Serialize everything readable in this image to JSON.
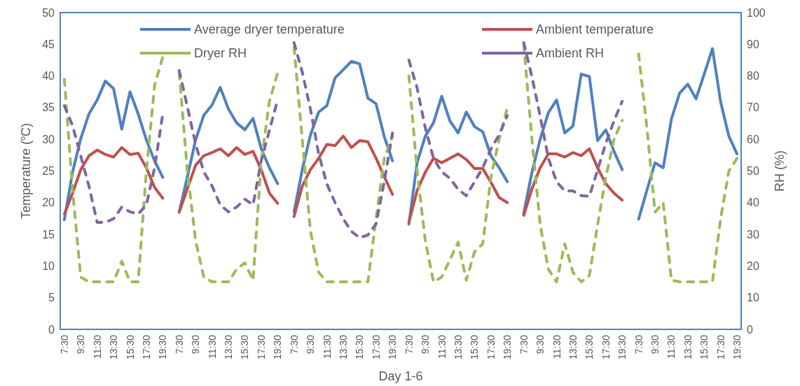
{
  "chart_data": {
    "type": "line",
    "xlabel": "Day 1-6",
    "ylabel": "Temperature ($^{o}$C)",
    "y2label": "RH (%)",
    "categories": [
      "7:30",
      null,
      "9:30",
      null,
      "11:30",
      null,
      "13:30",
      null,
      "15:30",
      null,
      "17:30",
      null,
      "19:30",
      null,
      "7:30",
      null,
      "9:30",
      null,
      "11:30",
      null,
      "13:30",
      null,
      "15:30",
      null,
      "17:30",
      null,
      "19:30",
      null,
      "7:30",
      null,
      "9:30",
      null,
      "11:30",
      null,
      "13:30",
      null,
      "15:30",
      null,
      "17:30",
      null,
      "19:30",
      null,
      "7:30",
      null,
      "9:30",
      null,
      "11:30",
      null,
      "13:30",
      null,
      "15:30",
      null,
      "17:30",
      null,
      "19:30",
      null,
      "7:30",
      null,
      "9:30",
      null,
      "11:30",
      null,
      "13:30",
      null,
      "15:30",
      null,
      "17:30",
      null,
      "19:30",
      null,
      "7:30",
      null,
      "9:30",
      null,
      "11:30",
      null,
      "13:30",
      null,
      "15:30",
      null,
      "17:30",
      null,
      "19:30"
    ],
    "series": [
      {
        "name": "Average dryer temperature",
        "color": "#4f81bd",
        "line_style": "solid",
        "values": [
          17.3,
          24.8,
          30.1,
          34,
          36.2,
          39.2,
          38,
          31.6,
          37.5,
          34,
          29.9,
          26.6,
          24,
          null,
          18.5,
          24.1,
          29.9,
          33.8,
          35.4,
          38.2,
          34.8,
          32.6,
          31.5,
          33.3,
          28.5,
          25.5,
          23,
          null,
          18.5,
          25.2,
          30.7,
          34.3,
          35.3,
          39.7,
          41,
          42.3,
          41.9,
          36.5,
          35.6,
          30.4,
          26.6,
          null,
          16.6,
          26.3,
          30.5,
          32.6,
          36.8,
          32.9,
          31,
          34.3,
          32,
          31.2,
          27.4,
          25.5,
          23.3,
          null,
          18.3,
          24.8,
          30,
          34.2,
          36.2,
          31,
          32.1,
          40.3,
          39.9,
          29.8,
          31.5,
          28.1,
          25.2,
          null,
          17.4,
          21.9,
          26.3,
          25.5,
          33.2,
          37.3,
          38.7,
          36.4,
          40.3,
          44.3,
          35.9,
          30.5,
          27.7
        ]
      },
      {
        "name": "Ambient temperature",
        "color": "#c0504d",
        "line_style": "solid",
        "values": [
          18.2,
          21.5,
          25.2,
          27.4,
          28.3,
          27.6,
          27.2,
          28.7,
          27.6,
          27.8,
          25.5,
          22.4,
          20.7,
          null,
          18.5,
          22.2,
          25.9,
          27.4,
          27.9,
          28.5,
          27.4,
          28.7,
          27.6,
          28.1,
          25.2,
          21.5,
          19.9,
          null,
          17.8,
          22.6,
          25.2,
          27,
          29.2,
          29,
          30.5,
          28.7,
          29.8,
          29.6,
          27,
          24.1,
          21.3,
          null,
          16.9,
          21.9,
          24.8,
          27,
          26.3,
          27,
          27.7,
          26.8,
          25.4,
          25.4,
          23.2,
          20.8,
          20,
          null,
          18,
          22.2,
          25.5,
          27.7,
          27.7,
          27.2,
          27.9,
          27.4,
          28.5,
          25.5,
          23,
          21.5,
          20.4,
          null,
          null,
          null,
          null,
          null,
          null,
          null,
          null,
          null,
          null,
          null,
          null,
          null,
          null
        ]
      },
      {
        "name": "Dryer RH",
        "color": "#9bbb59",
        "line_style": "dashed",
        "axis": "y2",
        "values": [
          79,
          44,
          16.5,
          15,
          15,
          15,
          15,
          21.5,
          15,
          15,
          50,
          77,
          86,
          null,
          81,
          50,
          28,
          16.5,
          15,
          15,
          15,
          19,
          21,
          15.5,
          53,
          72,
          81,
          null,
          89,
          60,
          31,
          18,
          15,
          15,
          15,
          15,
          15,
          15,
          35,
          54,
          61,
          null,
          80,
          50,
          28,
          15,
          16.5,
          22,
          27.5,
          15.5,
          24.5,
          27,
          48,
          60,
          70,
          null,
          90,
          60,
          33,
          19,
          15,
          27,
          18,
          15,
          17,
          33,
          48,
          60,
          66,
          null,
          87,
          64,
          37,
          40,
          15.5,
          15,
          15,
          15,
          15,
          15,
          35,
          50,
          54
        ]
      },
      {
        "name": "Ambient RH",
        "color": "#8064a2",
        "line_style": "dashed",
        "axis": "y2",
        "values": [
          70.6,
          64.3,
          54.7,
          45.2,
          33.8,
          33.8,
          34.9,
          38.6,
          37.1,
          36.4,
          39.3,
          51,
          68,
          null,
          81.7,
          70.2,
          58.5,
          49.7,
          45.3,
          39.3,
          37.1,
          38.6,
          41.1,
          39.3,
          53.2,
          62.9,
          72.4,
          null,
          90.5,
          81.2,
          69.5,
          55.4,
          45.9,
          40,
          34.9,
          30.9,
          28.9,
          29.8,
          33.3,
          46.6,
          62,
          null,
          85,
          76.2,
          63.6,
          54,
          49.7,
          47.7,
          44.2,
          42.2,
          46.6,
          51,
          57,
          61.4,
          67.5,
          null,
          90.5,
          79.7,
          67.3,
          54,
          46.6,
          43.7,
          43.7,
          42.2,
          42,
          50.3,
          58.7,
          65.8,
          72,
          null,
          null,
          null,
          null,
          null,
          null,
          null,
          null,
          null,
          null,
          null,
          null,
          null,
          null
        ]
      }
    ],
    "ylim": [
      0,
      50
    ],
    "yticks": [
      0,
      5,
      10,
      15,
      20,
      25,
      30,
      35,
      40,
      45,
      50
    ],
    "y2lim": [
      0,
      100
    ],
    "y2ticks": [
      0,
      10,
      20,
      30,
      40,
      50,
      60,
      70,
      80,
      90,
      100
    ],
    "grid": false,
    "legend": "top",
    "marker": "none"
  }
}
